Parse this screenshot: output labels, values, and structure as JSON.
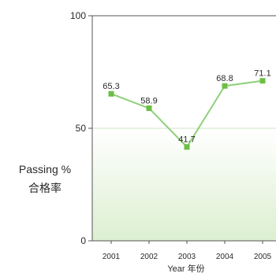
{
  "chart_data": {
    "type": "line",
    "x": [
      "2001",
      "2002",
      "2003",
      "2004",
      "2005"
    ],
    "series": [
      {
        "values": [
          65.3,
          58.9,
          41.7,
          68.8,
          71.1
        ],
        "labels": [
          "65.3",
          "58.9",
          "41.7",
          "68.8",
          "71.1"
        ]
      }
    ],
    "ylim": [
      0,
      100
    ],
    "yticks": [
      "0",
      "50",
      "100"
    ],
    "ylabel_line1": "Passing %",
    "ylabel_line2": "合格率",
    "xlabel": "Year 年份",
    "grid": false,
    "reference_line_at": 50,
    "colors": {
      "line": "#8fd07a",
      "marker": "#6cbf45",
      "band_top": "#ffffff",
      "band_bottom": "#dcefd0",
      "axis": "#555555"
    }
  }
}
